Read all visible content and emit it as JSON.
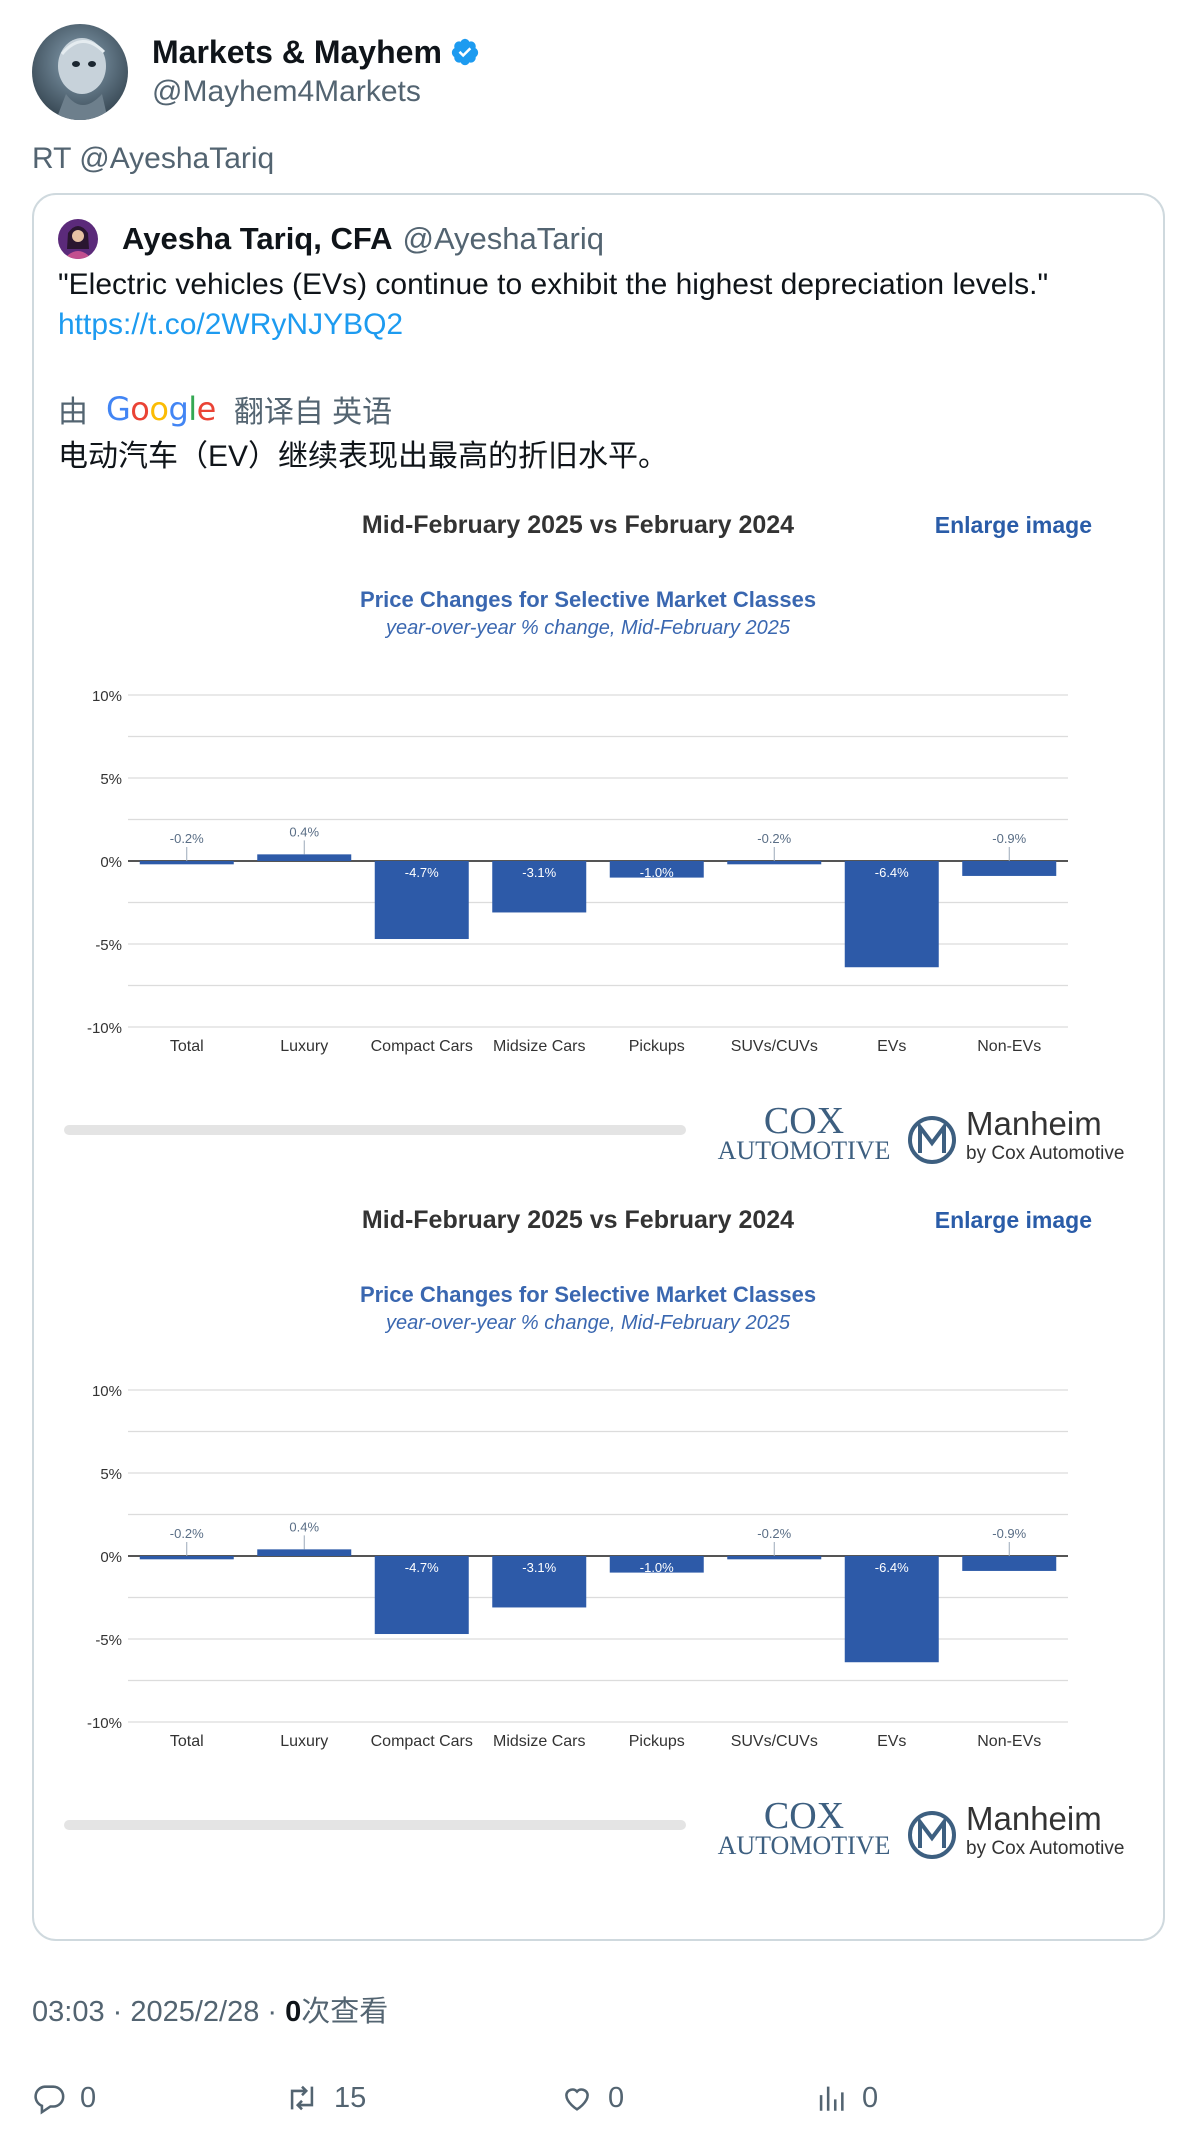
{
  "tweet": {
    "author_name": "Markets & Mayhem",
    "author_handle": "@Mayhem4Markets",
    "retweet_line": "RT @AyeshaTariq",
    "timestamp": "03:03 · 2025/2/28 · ",
    "view_count": "0",
    "view_label": "次查看"
  },
  "quote": {
    "author_name": "Ayesha Tariq, CFA",
    "author_handle": "@AyeshaTariq",
    "text": "\"Electric vehicles (EVs) continue to exhibit the highest depreciation levels.\"",
    "link": "https://t.co/2WRyNJYBQ2",
    "translate_prefix": "由",
    "translate_brand": "Google",
    "translate_suffix": "翻译自 英语",
    "translated_text": "电动汽车（EV）继续表现出最高的折旧水平。"
  },
  "charts_panel": {
    "header": "Mid-February 2025 vs February 2024",
    "enlarge_label": "Enlarge image",
    "brand_left_1": "COX",
    "brand_left_2": "AUTOMOTIVE",
    "brand_right_1": "Manheim",
    "brand_right_2": "by Cox Automotive"
  },
  "chart_data": [
    {
      "type": "bar",
      "title": "Price Changes for Selective Market Classes",
      "subtitle": "year-over-year % change, Mid-February 2025",
      "categories": [
        "Total",
        "Luxury",
        "Compact Cars",
        "Midsize Cars",
        "Pickups",
        "SUVs/CUVs",
        "EVs",
        "Non-EVs"
      ],
      "values": [
        -0.2,
        0.4,
        -4.7,
        -3.1,
        -1.0,
        -0.2,
        -6.4,
        -0.9
      ],
      "data_labels": [
        "-0.2%",
        "0.4%",
        "-4.7%",
        "-3.1%",
        "-1.0%",
        "-0.2%",
        "-6.4%",
        "-0.9%"
      ],
      "yticks": [
        "10%",
        "5%",
        "0%",
        "-5%",
        "-10%"
      ],
      "ylim": [
        -10,
        10
      ],
      "grid": true,
      "bar_color": "#2d5aa8"
    },
    {
      "type": "bar",
      "title": "Price Changes for Selective Market Classes",
      "subtitle": "year-over-year % change, Mid-February 2025",
      "categories": [
        "Total",
        "Luxury",
        "Compact Cars",
        "Midsize Cars",
        "Pickups",
        "SUVs/CUVs",
        "EVs",
        "Non-EVs"
      ],
      "values": [
        -0.2,
        0.4,
        -4.7,
        -3.1,
        -1.0,
        -0.2,
        -6.4,
        -0.9
      ],
      "data_labels": [
        "-0.2%",
        "0.4%",
        "-4.7%",
        "-3.1%",
        "-1.0%",
        "-0.2%",
        "-6.4%",
        "-0.9%"
      ],
      "yticks": [
        "10%",
        "5%",
        "0%",
        "-5%",
        "-10%"
      ],
      "ylim": [
        -10,
        10
      ],
      "grid": true,
      "bar_color": "#2d5aa8"
    }
  ],
  "actions": {
    "reply_count": "0",
    "retweet_count": "15",
    "like_count": "0",
    "views_count": "0"
  },
  "colors": {
    "link": "#1d9bf0",
    "secondary": "#536471",
    "verified": "#1d9bf0",
    "chart_blue": "#2d5aa8"
  }
}
